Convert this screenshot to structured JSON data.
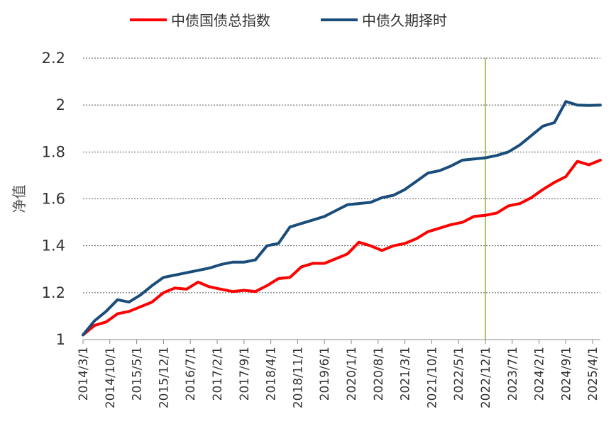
{
  "chart_data": {
    "type": "line",
    "ylabel": "净值",
    "xlabel": "",
    "ylim": [
      1,
      2.2
    ],
    "yticks": [
      1,
      1.2,
      1.4,
      1.6,
      1.8,
      2,
      2.2
    ],
    "ytick_labels": [
      "1",
      "1.2",
      "1.4",
      "1.6",
      "1.8",
      "2",
      "2.2"
    ],
    "grid": "horizontal-dotted",
    "legend_position": "top",
    "x_tick_labels": [
      "2014/3/1",
      "2014/10/1",
      "2015/5/1",
      "2015/12/1",
      "2016/7/1",
      "2017/2/1",
      "2017/9/1",
      "2018/4/1",
      "2018/11/1",
      "2019/6/1",
      "2020/1/1",
      "2020/8/1",
      "2021/3/1",
      "2021/10/1",
      "2022/5/1",
      "2022/12/1",
      "2023/7/1",
      "2024/2/1",
      "2024/9/1",
      "2025/4/1"
    ],
    "x_tick_months": [
      0,
      7,
      14,
      21,
      28,
      35,
      42,
      49,
      56,
      63,
      70,
      77,
      84,
      91,
      98,
      105,
      112,
      119,
      126,
      133
    ],
    "x_range_months": [
      0,
      135
    ],
    "reference_line_month": 105,
    "x_months": [
      0,
      3,
      6,
      9,
      12,
      15,
      18,
      21,
      24,
      27,
      30,
      33,
      36,
      39,
      42,
      45,
      48,
      51,
      54,
      57,
      60,
      63,
      66,
      69,
      72,
      75,
      78,
      81,
      84,
      87,
      90,
      93,
      96,
      99,
      102,
      105,
      108,
      111,
      114,
      117,
      120,
      123,
      126,
      129,
      132,
      135
    ],
    "series": [
      {
        "name": "中债国债总指数",
        "color": "#ff0000",
        "values": [
          1.02,
          1.06,
          1.075,
          1.11,
          1.12,
          1.14,
          1.16,
          1.2,
          1.22,
          1.215,
          1.245,
          1.225,
          1.215,
          1.205,
          1.21,
          1.205,
          1.23,
          1.26,
          1.265,
          1.31,
          1.325,
          1.325,
          1.345,
          1.365,
          1.415,
          1.4,
          1.38,
          1.4,
          1.41,
          1.43,
          1.46,
          1.475,
          1.49,
          1.5,
          1.525,
          1.53,
          1.54,
          1.57,
          1.58,
          1.605,
          1.64,
          1.67,
          1.695,
          1.76,
          1.745,
          1.765
        ]
      },
      {
        "name": "中债久期择时",
        "color": "#1a4d7a",
        "values": [
          1.02,
          1.08,
          1.12,
          1.17,
          1.16,
          1.19,
          1.23,
          1.265,
          1.275,
          1.285,
          1.295,
          1.305,
          1.32,
          1.33,
          1.33,
          1.34,
          1.4,
          1.41,
          1.48,
          1.495,
          1.51,
          1.525,
          1.55,
          1.575,
          1.58,
          1.585,
          1.605,
          1.615,
          1.64,
          1.675,
          1.71,
          1.72,
          1.74,
          1.765,
          1.77,
          1.775,
          1.785,
          1.8,
          1.83,
          1.87,
          1.91,
          1.925,
          2.015,
          2.0,
          1.998,
          2.0
        ]
      }
    ]
  },
  "colors": {
    "reference_line": "#8db33a",
    "grid": "#555555",
    "axis": "#888888"
  }
}
